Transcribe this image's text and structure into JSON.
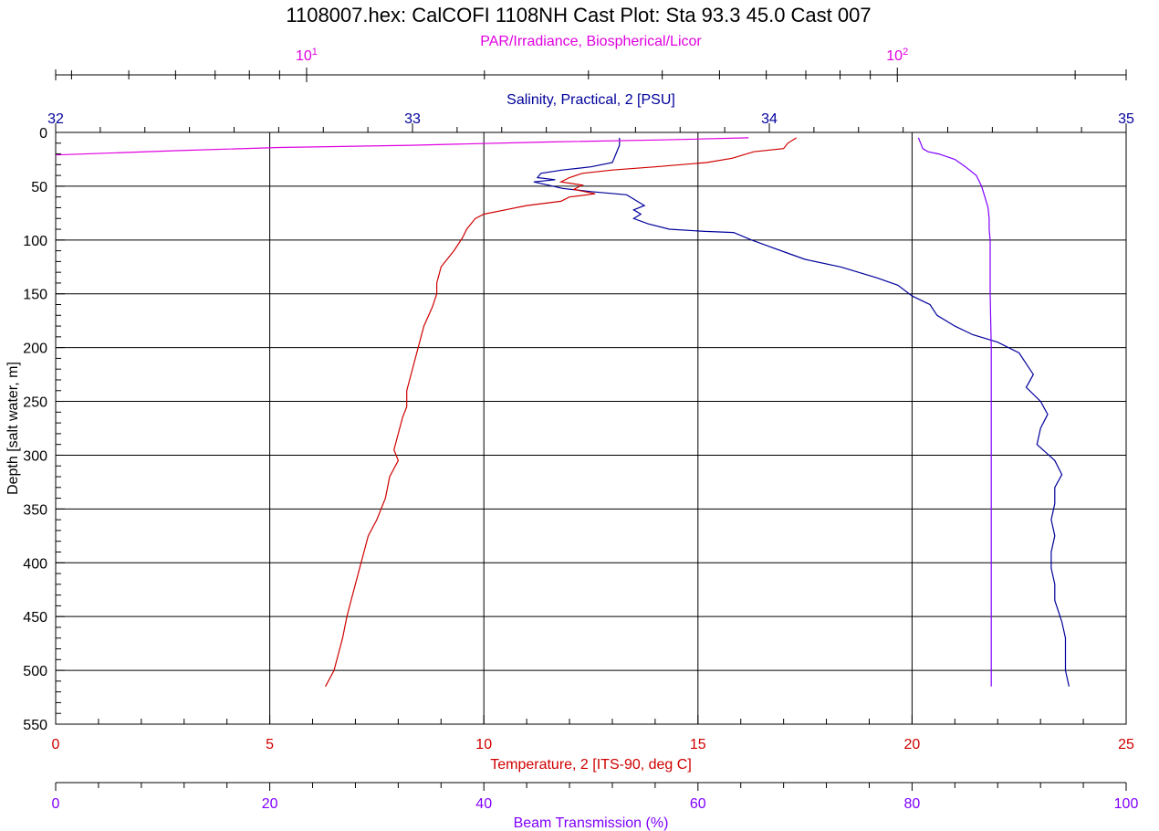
{
  "chart_data": {
    "type": "line",
    "title": "1108007.hex: CalCOFI 1108NH Cast Plot:  Sta 93.3 45.0 Cast 007",
    "colors": {
      "salinity": "#00009c",
      "temperature": "#d00000",
      "par": "#e000e0",
      "beam": "#8000ff",
      "grid": "#000000"
    },
    "y_axis": {
      "label": "Depth [salt water, m]",
      "range": [
        0,
        550
      ],
      "ticks": [
        0,
        50,
        100,
        150,
        200,
        250,
        300,
        350,
        400,
        450,
        500,
        550
      ]
    },
    "axes_top": [
      {
        "id": "par",
        "label": "PAR/Irradiance, Biospherical/Licor",
        "scale": "log",
        "range": [
          3.76,
          244
        ],
        "ticks": [
          {
            "value": 10,
            "base": "10",
            "exp": "1"
          },
          {
            "value": 100,
            "base": "10",
            "exp": "2"
          }
        ]
      },
      {
        "id": "salinity",
        "label": "Salinity, Practical, 2 [PSU]",
        "scale": "linear",
        "range": [
          32,
          35
        ],
        "ticks": [
          "32",
          "33",
          "34",
          "35"
        ]
      }
    ],
    "axes_bottom": [
      {
        "id": "temperature",
        "label": "Temperature, 2 [ITS-90, deg C]",
        "scale": "linear",
        "range": [
          0,
          25
        ],
        "ticks": [
          "0",
          "5",
          "10",
          "15",
          "20",
          "25"
        ]
      },
      {
        "id": "beam",
        "label": "Beam Transmission (%)",
        "scale": "linear",
        "range": [
          0,
          100
        ],
        "ticks": [
          "0",
          "20",
          "40",
          "60",
          "80",
          "100"
        ]
      }
    ],
    "grid": true,
    "series": [
      {
        "key": "salinity",
        "axis": "salinity",
        "points": [
          [
            33.58,
            5
          ],
          [
            33.58,
            12
          ],
          [
            33.57,
            20
          ],
          [
            33.56,
            28
          ],
          [
            33.5,
            32
          ],
          [
            33.42,
            35
          ],
          [
            33.36,
            38
          ],
          [
            33.35,
            42
          ],
          [
            33.4,
            44
          ],
          [
            33.34,
            46
          ],
          [
            33.38,
            49
          ],
          [
            33.42,
            52
          ],
          [
            33.5,
            55
          ],
          [
            33.6,
            58
          ],
          [
            33.62,
            62
          ],
          [
            33.65,
            68
          ],
          [
            33.62,
            72
          ],
          [
            33.64,
            76
          ],
          [
            33.62,
            80
          ],
          [
            33.66,
            85
          ],
          [
            33.72,
            90
          ],
          [
            33.82,
            92
          ],
          [
            33.9,
            93
          ],
          [
            33.95,
            100
          ],
          [
            34.0,
            106
          ],
          [
            34.05,
            112
          ],
          [
            34.1,
            118
          ],
          [
            34.2,
            125
          ],
          [
            34.3,
            135
          ],
          [
            34.36,
            142
          ],
          [
            34.4,
            152
          ],
          [
            34.45,
            160
          ],
          [
            34.47,
            170
          ],
          [
            34.52,
            180
          ],
          [
            34.57,
            188
          ],
          [
            34.64,
            195
          ],
          [
            34.7,
            205
          ],
          [
            34.72,
            215
          ],
          [
            34.74,
            225
          ],
          [
            34.72,
            237
          ],
          [
            34.76,
            250
          ],
          [
            34.78,
            262
          ],
          [
            34.76,
            275
          ],
          [
            34.75,
            290
          ],
          [
            34.8,
            305
          ],
          [
            34.82,
            318
          ],
          [
            34.8,
            330
          ],
          [
            34.8,
            345
          ],
          [
            34.79,
            360
          ],
          [
            34.8,
            375
          ],
          [
            34.79,
            390
          ],
          [
            34.79,
            405
          ],
          [
            34.8,
            420
          ],
          [
            34.8,
            435
          ],
          [
            34.82,
            455
          ],
          [
            34.83,
            470
          ],
          [
            34.83,
            485
          ],
          [
            34.83,
            500
          ],
          [
            34.84,
            515
          ]
        ]
      },
      {
        "key": "temperature",
        "axis": "temperature",
        "points": [
          [
            17.3,
            5
          ],
          [
            17.1,
            10
          ],
          [
            17.0,
            15
          ],
          [
            16.3,
            18
          ],
          [
            15.8,
            24
          ],
          [
            15.2,
            28
          ],
          [
            14.0,
            32
          ],
          [
            13.0,
            35
          ],
          [
            12.3,
            38
          ],
          [
            12.0,
            42
          ],
          [
            11.8,
            46
          ],
          [
            12.3,
            49
          ],
          [
            12.1,
            53
          ],
          [
            12.6,
            57
          ],
          [
            12.0,
            60
          ],
          [
            11.8,
            64
          ],
          [
            11.0,
            68
          ],
          [
            10.5,
            72
          ],
          [
            10.0,
            76
          ],
          [
            9.8,
            80
          ],
          [
            9.7,
            85
          ],
          [
            9.6,
            90
          ],
          [
            9.5,
            98
          ],
          [
            9.3,
            110
          ],
          [
            9.0,
            125
          ],
          [
            8.9,
            140
          ],
          [
            8.9,
            150
          ],
          [
            8.8,
            162
          ],
          [
            8.6,
            180
          ],
          [
            8.5,
            195
          ],
          [
            8.4,
            210
          ],
          [
            8.3,
            225
          ],
          [
            8.2,
            240
          ],
          [
            8.2,
            255
          ],
          [
            8.1,
            265
          ],
          [
            8.0,
            280
          ],
          [
            7.9,
            295
          ],
          [
            8.0,
            305
          ],
          [
            7.8,
            320
          ],
          [
            7.7,
            340
          ],
          [
            7.5,
            360
          ],
          [
            7.3,
            375
          ],
          [
            7.2,
            390
          ],
          [
            7.1,
            405
          ],
          [
            7.0,
            420
          ],
          [
            6.9,
            435
          ],
          [
            6.8,
            450
          ],
          [
            6.7,
            470
          ],
          [
            6.6,
            485
          ],
          [
            6.5,
            500
          ],
          [
            6.3,
            515
          ]
        ]
      },
      {
        "key": "par",
        "axis": "par",
        "points": [
          [
            56,
            5
          ],
          [
            40,
            7
          ],
          [
            25,
            9
          ],
          [
            15,
            12
          ],
          [
            9,
            14
          ],
          [
            6,
            17
          ],
          [
            3.76,
            21
          ]
        ]
      },
      {
        "key": "beam",
        "axis": "beam",
        "points": [
          [
            80.6,
            5
          ],
          [
            80.8,
            10
          ],
          [
            81,
            15
          ],
          [
            81.5,
            18
          ],
          [
            82.5,
            20
          ],
          [
            84,
            25
          ],
          [
            85,
            32
          ],
          [
            86,
            40
          ],
          [
            86.5,
            50
          ],
          [
            86.8,
            60
          ],
          [
            87.1,
            70
          ],
          [
            87.2,
            80
          ],
          [
            87.2,
            90
          ],
          [
            87.3,
            100
          ],
          [
            87.3,
            120
          ],
          [
            87.3,
            150
          ],
          [
            87.4,
            200
          ],
          [
            87.4,
            300
          ],
          [
            87.4,
            400
          ],
          [
            87.4,
            515
          ]
        ]
      }
    ]
  }
}
